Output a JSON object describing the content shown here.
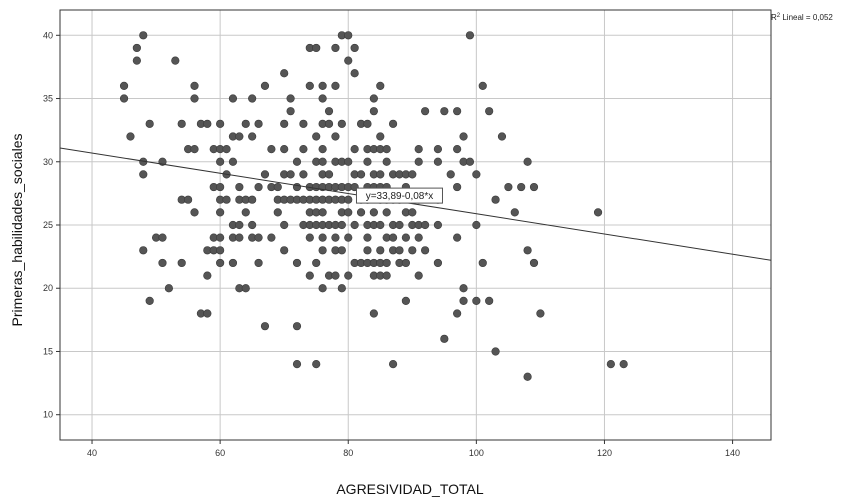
{
  "chart_data": {
    "type": "scatter",
    "xlabel": "AGRESIVIDAD_TOTAL",
    "ylabel": "Primeras_habilidades_sociales",
    "xlim": [
      35,
      146
    ],
    "ylim": [
      8,
      42
    ],
    "xticks": [
      40,
      60,
      80,
      100,
      120,
      140
    ],
    "yticks": [
      10,
      15,
      20,
      25,
      30,
      35,
      40
    ],
    "grid": true,
    "legend": "none",
    "fit_line": {
      "intercept": 33.89,
      "slope": -0.08,
      "label": "y=33,89-0,08*x"
    },
    "r2_label": {
      "prefix": "R",
      "sup": "2",
      "suffix": " Lineal = 0,052"
    },
    "point_color": "#555555",
    "points": [
      [
        45,
        36
      ],
      [
        45,
        35
      ],
      [
        46,
        32
      ],
      [
        47,
        38
      ],
      [
        47,
        39
      ],
      [
        48,
        40
      ],
      [
        48,
        29
      ],
      [
        49,
        33
      ],
      [
        48,
        30
      ],
      [
        49,
        19
      ],
      [
        48,
        23
      ],
      [
        50,
        24
      ],
      [
        51,
        24
      ],
      [
        51,
        22
      ],
      [
        51,
        30
      ],
      [
        52,
        20
      ],
      [
        53,
        38
      ],
      [
        54,
        27
      ],
      [
        54,
        33
      ],
      [
        54,
        22
      ],
      [
        55,
        31
      ],
      [
        55,
        27
      ],
      [
        56,
        26
      ],
      [
        56,
        35
      ],
      [
        56,
        36
      ],
      [
        56,
        31
      ],
      [
        57,
        33
      ],
      [
        57,
        18
      ],
      [
        58,
        33
      ],
      [
        58,
        23
      ],
      [
        58,
        21
      ],
      [
        58,
        18
      ],
      [
        59,
        31
      ],
      [
        59,
        28
      ],
      [
        59,
        24
      ],
      [
        59,
        23
      ],
      [
        60,
        33
      ],
      [
        60,
        31
      ],
      [
        60,
        30
      ],
      [
        60,
        28
      ],
      [
        60,
        27
      ],
      [
        60,
        26
      ],
      [
        60,
        24
      ],
      [
        60,
        23
      ],
      [
        60,
        22
      ],
      [
        61,
        31
      ],
      [
        61,
        29
      ],
      [
        61,
        27
      ],
      [
        62,
        35
      ],
      [
        62,
        32
      ],
      [
        62,
        30
      ],
      [
        62,
        25
      ],
      [
        62,
        24
      ],
      [
        62,
        22
      ],
      [
        63,
        32
      ],
      [
        63,
        28
      ],
      [
        63,
        27
      ],
      [
        63,
        25
      ],
      [
        63,
        24
      ],
      [
        63,
        20
      ],
      [
        64,
        33
      ],
      [
        64,
        27
      ],
      [
        64,
        26
      ],
      [
        64,
        20
      ],
      [
        65,
        35
      ],
      [
        65,
        32
      ],
      [
        65,
        27
      ],
      [
        65,
        25
      ],
      [
        65,
        24
      ],
      [
        66,
        33
      ],
      [
        66,
        28
      ],
      [
        66,
        24
      ],
      [
        66,
        22
      ],
      [
        67,
        36
      ],
      [
        67,
        29
      ],
      [
        67,
        17
      ],
      [
        68,
        31
      ],
      [
        68,
        28
      ],
      [
        68,
        24
      ],
      [
        69,
        27
      ],
      [
        69,
        28
      ],
      [
        69,
        26
      ],
      [
        70,
        37
      ],
      [
        70,
        33
      ],
      [
        70,
        31
      ],
      [
        70,
        29
      ],
      [
        70,
        27
      ],
      [
        70,
        25
      ],
      [
        70,
        23
      ],
      [
        71,
        35
      ],
      [
        71,
        34
      ],
      [
        71,
        29
      ],
      [
        71,
        27
      ],
      [
        72,
        30
      ],
      [
        72,
        28
      ],
      [
        72,
        27
      ],
      [
        72,
        22
      ],
      [
        72,
        17
      ],
      [
        72,
        14
      ],
      [
        73,
        33
      ],
      [
        73,
        31
      ],
      [
        73,
        29
      ],
      [
        73,
        27
      ],
      [
        73,
        25
      ],
      [
        74,
        39
      ],
      [
        74,
        36
      ],
      [
        74,
        28
      ],
      [
        74,
        27
      ],
      [
        74,
        26
      ],
      [
        74,
        25
      ],
      [
        74,
        24
      ],
      [
        74,
        21
      ],
      [
        75,
        39
      ],
      [
        75,
        32
      ],
      [
        75,
        30
      ],
      [
        75,
        28
      ],
      [
        75,
        27
      ],
      [
        75,
        26
      ],
      [
        75,
        25
      ],
      [
        75,
        22
      ],
      [
        75,
        14
      ],
      [
        76,
        36
      ],
      [
        76,
        35
      ],
      [
        76,
        33
      ],
      [
        76,
        31
      ],
      [
        76,
        30
      ],
      [
        76,
        29
      ],
      [
        76,
        28
      ],
      [
        76,
        27
      ],
      [
        76,
        26
      ],
      [
        76,
        25
      ],
      [
        76,
        24
      ],
      [
        76,
        23
      ],
      [
        76,
        20
      ],
      [
        77,
        34
      ],
      [
        77,
        33
      ],
      [
        77,
        29
      ],
      [
        77,
        28
      ],
      [
        77,
        27
      ],
      [
        77,
        25
      ],
      [
        77,
        21
      ],
      [
        78,
        39
      ],
      [
        78,
        36
      ],
      [
        78,
        32
      ],
      [
        78,
        30
      ],
      [
        78,
        28
      ],
      [
        78,
        27
      ],
      [
        78,
        25
      ],
      [
        78,
        24
      ],
      [
        78,
        23
      ],
      [
        78,
        21
      ],
      [
        79,
        40
      ],
      [
        79,
        33
      ],
      [
        79,
        30
      ],
      [
        79,
        28
      ],
      [
        79,
        27
      ],
      [
        79,
        26
      ],
      [
        79,
        25
      ],
      [
        79,
        23
      ],
      [
        79,
        20
      ],
      [
        80,
        40
      ],
      [
        80,
        38
      ],
      [
        80,
        30
      ],
      [
        80,
        28
      ],
      [
        80,
        27
      ],
      [
        80,
        26
      ],
      [
        80,
        24
      ],
      [
        80,
        21
      ],
      [
        81,
        39
      ],
      [
        81,
        37
      ],
      [
        81,
        31
      ],
      [
        81,
        29
      ],
      [
        81,
        28
      ],
      [
        81,
        25
      ],
      [
        81,
        22
      ],
      [
        82,
        33
      ],
      [
        82,
        29
      ],
      [
        82,
        27
      ],
      [
        82,
        26
      ],
      [
        82,
        22
      ],
      [
        83,
        33
      ],
      [
        83,
        31
      ],
      [
        83,
        30
      ],
      [
        83,
        28
      ],
      [
        83,
        27
      ],
      [
        83,
        25
      ],
      [
        83,
        24
      ],
      [
        83,
        23
      ],
      [
        83,
        22
      ],
      [
        84,
        35
      ],
      [
        84,
        34
      ],
      [
        84,
        31
      ],
      [
        84,
        29
      ],
      [
        84,
        28
      ],
      [
        84,
        26
      ],
      [
        84,
        25
      ],
      [
        84,
        22
      ],
      [
        84,
        21
      ],
      [
        84,
        18
      ],
      [
        85,
        36
      ],
      [
        85,
        32
      ],
      [
        85,
        31
      ],
      [
        85,
        29
      ],
      [
        85,
        28
      ],
      [
        85,
        27
      ],
      [
        85,
        25
      ],
      [
        85,
        23
      ],
      [
        85,
        22
      ],
      [
        85,
        21
      ],
      [
        86,
        31
      ],
      [
        86,
        30
      ],
      [
        86,
        28
      ],
      [
        86,
        27
      ],
      [
        86,
        26
      ],
      [
        86,
        24
      ],
      [
        86,
        22
      ],
      [
        86,
        21
      ],
      [
        87,
        33
      ],
      [
        87,
        29
      ],
      [
        87,
        27
      ],
      [
        87,
        25
      ],
      [
        87,
        24
      ],
      [
        87,
        23
      ],
      [
        87,
        14
      ],
      [
        88,
        29
      ],
      [
        88,
        27
      ],
      [
        88,
        25
      ],
      [
        88,
        23
      ],
      [
        88,
        22
      ],
      [
        89,
        29
      ],
      [
        89,
        28
      ],
      [
        89,
        26
      ],
      [
        89,
        24
      ],
      [
        89,
        22
      ],
      [
        89,
        19
      ],
      [
        90,
        29
      ],
      [
        90,
        26
      ],
      [
        90,
        25
      ],
      [
        90,
        23
      ],
      [
        91,
        31
      ],
      [
        91,
        30
      ],
      [
        91,
        27
      ],
      [
        91,
        25
      ],
      [
        91,
        24
      ],
      [
        91,
        21
      ],
      [
        92,
        34
      ],
      [
        92,
        25
      ],
      [
        92,
        23
      ],
      [
        94,
        31
      ],
      [
        94,
        30
      ],
      [
        94,
        27
      ],
      [
        94,
        25
      ],
      [
        94,
        22
      ],
      [
        95,
        34
      ],
      [
        95,
        16
      ],
      [
        96,
        29
      ],
      [
        97,
        34
      ],
      [
        97,
        31
      ],
      [
        97,
        28
      ],
      [
        97,
        24
      ],
      [
        97,
        18
      ],
      [
        98,
        32
      ],
      [
        98,
        30
      ],
      [
        98,
        20
      ],
      [
        98,
        19
      ],
      [
        99,
        40
      ],
      [
        99,
        30
      ],
      [
        100,
        29
      ],
      [
        100,
        25
      ],
      [
        100,
        19
      ],
      [
        101,
        36
      ],
      [
        101,
        22
      ],
      [
        102,
        34
      ],
      [
        102,
        19
      ],
      [
        103,
        27
      ],
      [
        103,
        15
      ],
      [
        104,
        32
      ],
      [
        105,
        28
      ],
      [
        106,
        26
      ],
      [
        107,
        28
      ],
      [
        108,
        30
      ],
      [
        108,
        23
      ],
      [
        108,
        13
      ],
      [
        109,
        28
      ],
      [
        109,
        22
      ],
      [
        110,
        18
      ],
      [
        119,
        26
      ],
      [
        121,
        14
      ],
      [
        123,
        14
      ]
    ]
  }
}
